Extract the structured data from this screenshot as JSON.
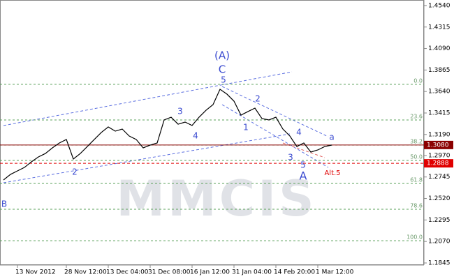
{
  "chart_data": {
    "type": "line",
    "watermark": "MMCIS",
    "color": "#000000",
    "categories": [
      null,
      null,
      "13 Nov 2012",
      null,
      null,
      null,
      null,
      null,
      null,
      "28 Nov 12:00",
      null,
      null,
      null,
      null,
      null,
      "13 Dec 04:00",
      null,
      null,
      null,
      null,
      null,
      "31 Dec 08:00",
      null,
      null,
      null,
      null,
      null,
      "16 Jan 12:00",
      null,
      null,
      null,
      null,
      null,
      "31 Jan 04:00",
      null,
      null,
      null,
      null,
      null,
      "14 Feb 20:00",
      null,
      null,
      null,
      null,
      null,
      "1 Mar 12:00",
      null,
      null
    ],
    "values": [
      1.2714,
      1.2772,
      1.2809,
      1.2845,
      1.2904,
      1.2955,
      1.2991,
      1.305,
      1.3101,
      1.3138,
      1.2933,
      1.2991,
      1.3064,
      1.3138,
      1.3211,
      1.3269,
      1.3225,
      1.3247,
      1.3174,
      1.3138,
      1.305,
      1.3079,
      1.3101,
      1.3342,
      1.3371,
      1.3298,
      1.332,
      1.3284,
      1.3371,
      1.3444,
      1.3503,
      1.3663,
      1.3612,
      1.3539,
      1.3393,
      1.343,
      1.3466,
      1.3357,
      1.3342,
      1.3371,
      1.3247,
      1.3174,
      1.3064,
      1.3101,
      1.3006,
      1.3028,
      1.3064,
      1.3079
    ],
    "ylim": [
      1.1823,
      1.4598
    ],
    "yticks": [
      {
        "value": 1.454,
        "label": "1.4540"
      },
      1.4315,
      {
        "value": 1.409,
        "label": "1.4090"
      },
      1.3865,
      {
        "value": 1.364,
        "label": "1.3640"
      },
      1.3415,
      {
        "value": 1.319,
        "label": "1.3190"
      },
      {
        "value": 1.297,
        "label": "1.2970"
      },
      1.2745,
      {
        "value": 1.252,
        "label": "1.2520"
      },
      1.2295,
      {
        "value": 1.207,
        "label": "1.2070"
      },
      1.1845
    ],
    "fib_levels": [
      {
        "name": "0.0",
        "price": 1.3715
      },
      {
        "name": "23.6",
        "price": 1.3342
      },
      {
        "name": "38.2",
        "price": 1.3079
      },
      {
        "name": "50.0",
        "price": 1.2918
      },
      {
        "name": "61.8",
        "price": 1.2677
      },
      {
        "name": "78.6",
        "price": 1.2407
      },
      {
        "name": "100.0",
        "price": 1.2078
      }
    ],
    "fib_color": "#5aa05a",
    "price_lines": [
      {
        "value": 1.308,
        "label": "1.3080",
        "color": "#8b0000"
      },
      {
        "value": 1.2888,
        "label": "1.2888",
        "color": "#e00000"
      }
    ],
    "wave_labels": [
      "B",
      "2",
      "3",
      "4",
      "5",
      "C",
      "(A)",
      "1",
      "2",
      "3",
      "4",
      "5",
      "A",
      "a",
      "Alt.5"
    ]
  }
}
